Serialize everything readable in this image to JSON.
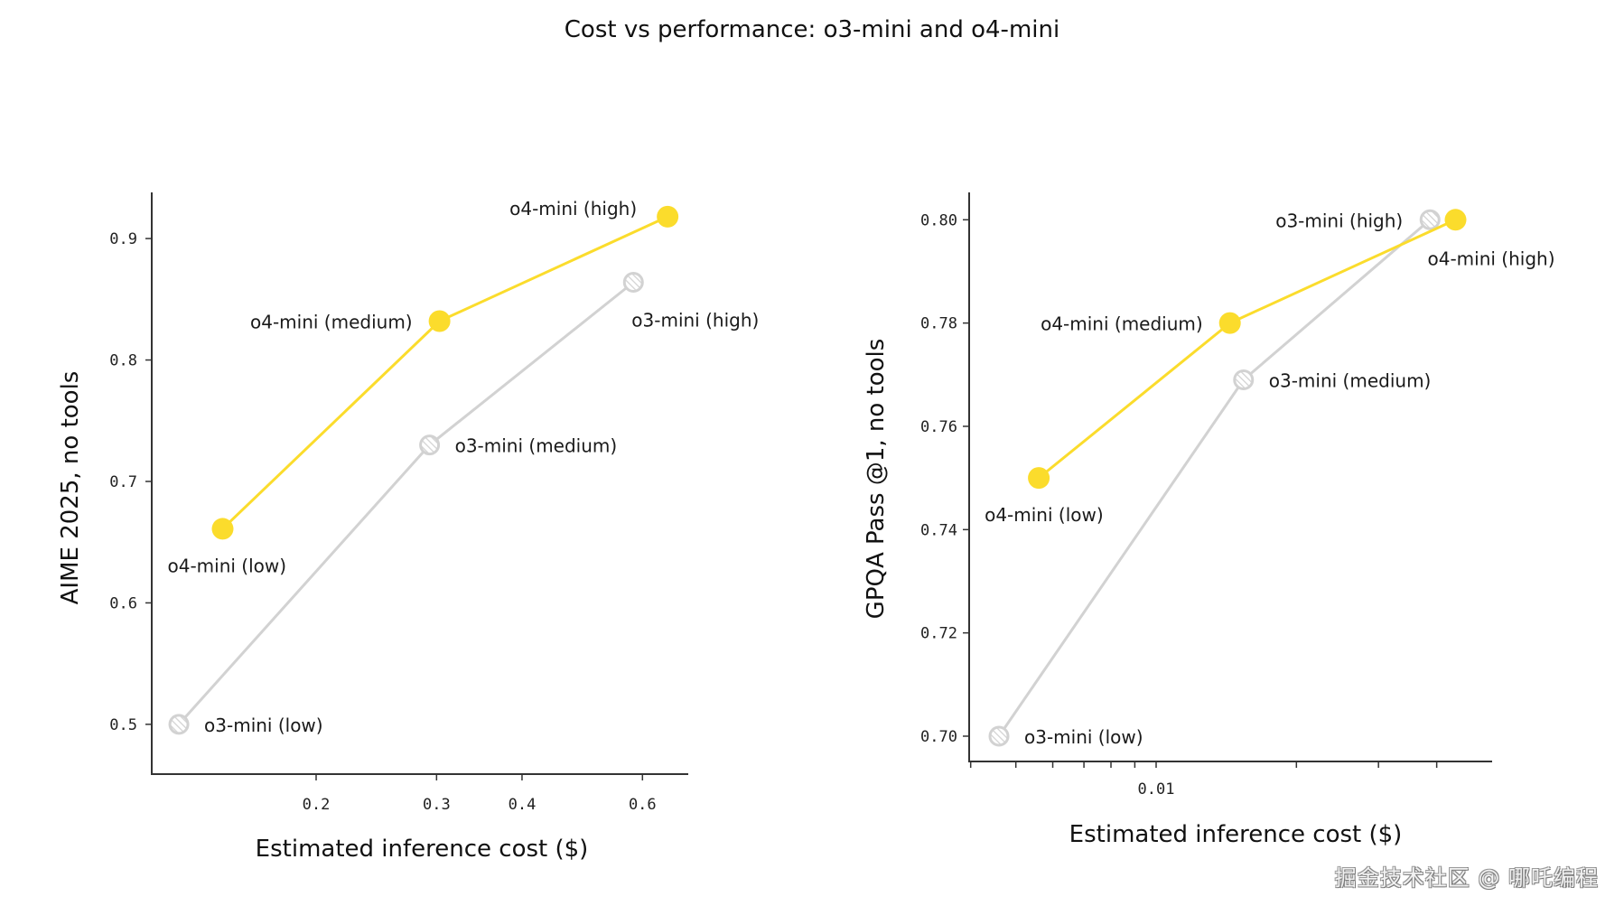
{
  "title": "Cost vs performance: o3-mini and o4-mini",
  "watermark": "掘金技术社区 @ 哪吒编程",
  "colors": {
    "o4_mini": "#fbdc2c",
    "o3_mini": "#d2d2d2",
    "axis": "#333333"
  },
  "chart_data": [
    {
      "type": "line",
      "id": "aime",
      "xlabel": "Estimated inference cost ($)",
      "ylabel": "AIME 2025, no tools",
      "xscale": "log",
      "xlim": [
        0.115,
        0.7
      ],
      "ylim": [
        0.459,
        0.938
      ],
      "xticks": [
        {
          "value": 0.2,
          "label": "0.2"
        },
        {
          "value": 0.3,
          "label": "0.3"
        },
        {
          "value": 0.4,
          "label": "0.4"
        },
        {
          "value": 0.6,
          "label": "0.6"
        }
      ],
      "yticks": [
        {
          "value": 0.5,
          "label": "0.5"
        },
        {
          "value": 0.6,
          "label": "0.6"
        },
        {
          "value": 0.7,
          "label": "0.7"
        },
        {
          "value": 0.8,
          "label": "0.8"
        },
        {
          "value": 0.9,
          "label": "0.9"
        }
      ],
      "grid": false,
      "series": [
        {
          "name": "o3-mini",
          "style": "hatched",
          "points": [
            {
              "x": 0.126,
              "y": 0.5,
              "label": "o3-mini (low)",
              "anchor": "right"
            },
            {
              "x": 0.293,
              "y": 0.73,
              "label": "o3-mini (medium)",
              "anchor": "right"
            },
            {
              "x": 0.582,
              "y": 0.864,
              "label": "o3-mini (high)",
              "anchor": "below"
            }
          ]
        },
        {
          "name": "o4-mini",
          "style": "filled",
          "points": [
            {
              "x": 0.146,
              "y": 0.661,
              "label": "o4-mini (low)",
              "anchor": "below"
            },
            {
              "x": 0.303,
              "y": 0.832,
              "label": "o4-mini (medium)",
              "anchor": "left"
            },
            {
              "x": 0.653,
              "y": 0.918,
              "label": "o4-mini (high)",
              "anchor": "left-up"
            }
          ]
        }
      ]
    },
    {
      "type": "line",
      "id": "gpqa",
      "xlabel": "Estimated inference cost ($)",
      "ylabel": "GPQA Pass @1, no tools",
      "xscale": "log",
      "xlim": [
        0.00397,
        0.0526
      ],
      "ylim": [
        0.6951,
        0.8053
      ],
      "xticks": [
        {
          "value": 0.004,
          "label": ""
        },
        {
          "value": 0.005,
          "label": ""
        },
        {
          "value": 0.006,
          "label": ""
        },
        {
          "value": 0.007,
          "label": ""
        },
        {
          "value": 0.008,
          "label": ""
        },
        {
          "value": 0.009,
          "label": ""
        },
        {
          "value": 0.01,
          "label": "0.01"
        },
        {
          "value": 0.02,
          "label": ""
        },
        {
          "value": 0.03,
          "label": ""
        },
        {
          "value": 0.04,
          "label": ""
        }
      ],
      "yticks": [
        {
          "value": 0.7,
          "label": "0.70"
        },
        {
          "value": 0.72,
          "label": "0.72"
        },
        {
          "value": 0.74,
          "label": "0.74"
        },
        {
          "value": 0.76,
          "label": "0.76"
        },
        {
          "value": 0.78,
          "label": "0.78"
        },
        {
          "value": 0.8,
          "label": "0.80"
        }
      ],
      "grid": false,
      "series": [
        {
          "name": "o3-mini",
          "style": "hatched",
          "points": [
            {
              "x": 0.0046,
              "y": 0.7,
              "label": "o3-mini (low)",
              "anchor": "right"
            },
            {
              "x": 0.0154,
              "y": 0.769,
              "label": "o3-mini (medium)",
              "anchor": "right"
            },
            {
              "x": 0.0387,
              "y": 0.8,
              "label": "o3-mini (high)",
              "anchor": "left"
            }
          ]
        },
        {
          "name": "o4-mini",
          "style": "filled",
          "points": [
            {
              "x": 0.0056,
              "y": 0.75,
              "label": "o4-mini (low)",
              "anchor": "below"
            },
            {
              "x": 0.0144,
              "y": 0.78,
              "label": "o4-mini (medium)",
              "anchor": "left"
            },
            {
              "x": 0.0439,
              "y": 0.8,
              "label": "o4-mini (high)",
              "anchor": "below-right"
            }
          ]
        }
      ]
    }
  ]
}
